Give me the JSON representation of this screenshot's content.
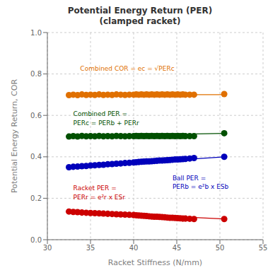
{
  "chart_data": {
    "type": "scatter",
    "title": "Potential Energy Return (PER)\n(clamped racket)",
    "x_label": "Racket Stiffness (N/mm)",
    "y_label": "Potential Energy Return, COR",
    "xlim": [
      30,
      55
    ],
    "ylim": [
      0,
      1
    ],
    "xticks": [
      30,
      35,
      40,
      45,
      50,
      55
    ],
    "yticks": [
      {
        "value": 0,
        "label": "0.0"
      },
      0.2,
      0.4,
      0.6,
      0.8,
      {
        "value": 1.0,
        "label": "1.0"
      }
    ],
    "grid": true,
    "series": [
      {
        "type": "line",
        "color": "#E07000",
        "x": [
          32.5,
          50.5
        ],
        "values": [
          0.7,
          0.7
        ]
      },
      {
        "type": "scatter",
        "marker": "circle",
        "color": "#E07000",
        "x": [
          32.5,
          33.0,
          33.5,
          34.0,
          34.5,
          35.0,
          35.5,
          36.0,
          36.5,
          37.0,
          37.5,
          38.0,
          38.5,
          39.0,
          39.5,
          40.0,
          40.3,
          40.6,
          40.9,
          41.2,
          41.5,
          41.8,
          42.1,
          42.4,
          42.7,
          43.0,
          43.3,
          43.6,
          43.9,
          44.2,
          44.5,
          44.8,
          45.1,
          45.4,
          45.7,
          46.0,
          46.5,
          47.0,
          50.5
        ],
        "values": [
          0.698,
          0.7,
          0.698,
          0.701,
          0.699,
          0.7,
          0.699,
          0.701,
          0.699,
          0.7,
          0.699,
          0.701,
          0.7,
          0.699,
          0.7,
          0.7,
          0.701,
          0.7,
          0.701,
          0.7,
          0.701,
          0.7,
          0.701,
          0.7,
          0.701,
          0.7,
          0.701,
          0.7,
          0.701,
          0.7,
          0.701,
          0.7,
          0.701,
          0.7,
          0.701,
          0.7,
          0.7,
          0.7,
          0.703
        ]
      },
      {
        "type": "line",
        "color": "#005000",
        "x": [
          32.5,
          50.5
        ],
        "values": [
          0.499,
          0.513
        ]
      },
      {
        "type": "scatter",
        "marker": "circle",
        "color": "#005000",
        "x": [
          32.5,
          33.0,
          33.5,
          34.0,
          34.5,
          35.0,
          35.5,
          36.0,
          36.5,
          37.0,
          37.5,
          38.0,
          38.5,
          39.0,
          39.5,
          40.0,
          40.3,
          40.6,
          40.9,
          41.2,
          41.5,
          41.8,
          42.1,
          42.4,
          42.7,
          43.0,
          43.3,
          43.6,
          43.9,
          44.2,
          44.5,
          44.8,
          45.1,
          45.4,
          45.7,
          46.0,
          46.5,
          47.0,
          50.5
        ],
        "values": [
          0.498,
          0.5,
          0.498,
          0.501,
          0.499,
          0.5,
          0.499,
          0.501,
          0.499,
          0.5,
          0.499,
          0.501,
          0.5,
          0.499,
          0.5,
          0.5,
          0.501,
          0.5,
          0.501,
          0.5,
          0.501,
          0.5,
          0.501,
          0.5,
          0.501,
          0.5,
          0.501,
          0.5,
          0.501,
          0.5,
          0.501,
          0.5,
          0.501,
          0.5,
          0.501,
          0.5,
          0.5,
          0.5,
          0.514
        ]
      },
      {
        "type": "line",
        "color": "#0000BB",
        "x": [
          32.5,
          50.5
        ],
        "values": [
          0.35,
          0.4
        ]
      },
      {
        "type": "scatter",
        "marker": "circle",
        "color": "#0000BB",
        "x": [
          32.5,
          33.0,
          33.5,
          34.0,
          34.5,
          35.0,
          35.5,
          36.0,
          36.5,
          37.0,
          37.5,
          38.0,
          38.5,
          39.0,
          39.5,
          40.0,
          40.3,
          40.6,
          40.9,
          41.2,
          41.5,
          41.8,
          42.1,
          42.4,
          42.7,
          43.0,
          43.3,
          43.6,
          43.9,
          44.2,
          44.5,
          44.8,
          45.1,
          45.4,
          45.7,
          46.0,
          46.5,
          47.0,
          50.5
        ],
        "values": [
          0.35,
          0.352,
          0.353,
          0.355,
          0.356,
          0.358,
          0.359,
          0.361,
          0.362,
          0.364,
          0.365,
          0.367,
          0.368,
          0.37,
          0.371,
          0.373,
          0.374,
          0.375,
          0.376,
          0.377,
          0.378,
          0.378,
          0.379,
          0.38,
          0.381,
          0.382,
          0.382,
          0.383,
          0.384,
          0.385,
          0.386,
          0.387,
          0.387,
          0.388,
          0.389,
          0.39,
          0.392,
          0.394,
          0.4
        ]
      },
      {
        "type": "line",
        "color": "#CC0000",
        "x": [
          32.5,
          50.5
        ],
        "values": [
          0.136,
          0.1
        ]
      },
      {
        "type": "scatter",
        "marker": "circle",
        "color": "#CC0000",
        "x": [
          32.5,
          33.0,
          33.5,
          34.0,
          34.5,
          35.0,
          35.5,
          36.0,
          36.5,
          37.0,
          37.5,
          38.0,
          38.5,
          39.0,
          39.5,
          40.0,
          40.3,
          40.6,
          40.9,
          41.2,
          41.5,
          41.8,
          42.1,
          42.4,
          42.7,
          43.0,
          43.3,
          43.6,
          43.9,
          44.2,
          44.5,
          44.8,
          45.1,
          45.4,
          45.7,
          46.0,
          46.5,
          47.0,
          50.5
        ],
        "values": [
          0.136,
          0.134,
          0.133,
          0.131,
          0.13,
          0.129,
          0.128,
          0.127,
          0.126,
          0.125,
          0.124,
          0.123,
          0.122,
          0.121,
          0.12,
          0.119,
          0.118,
          0.117,
          0.116,
          0.115,
          0.114,
          0.113,
          0.112,
          0.111,
          0.111,
          0.11,
          0.109,
          0.108,
          0.107,
          0.106,
          0.106,
          0.105,
          0.104,
          0.103,
          0.102,
          0.102,
          0.101,
          0.1,
          0.1
        ]
      }
    ],
    "annotations": [
      {
        "text": "Combined COR = ec = √PERc",
        "x": 33.8,
        "y": 0.81,
        "color": "#E07000"
      },
      {
        "text": "Combined PER =\nPERc = PERb + PERr",
        "x": 33.0,
        "y": 0.625,
        "color": "#005000"
      },
      {
        "text": "Ball PER =\nPERb = e²b x ESb",
        "x": 44.5,
        "y": 0.315,
        "color": "#0000BB"
      },
      {
        "text": "Racket PER =\nPERr = e²r x ESr",
        "x": 33.0,
        "y": 0.265,
        "color": "#CC0000"
      }
    ]
  }
}
